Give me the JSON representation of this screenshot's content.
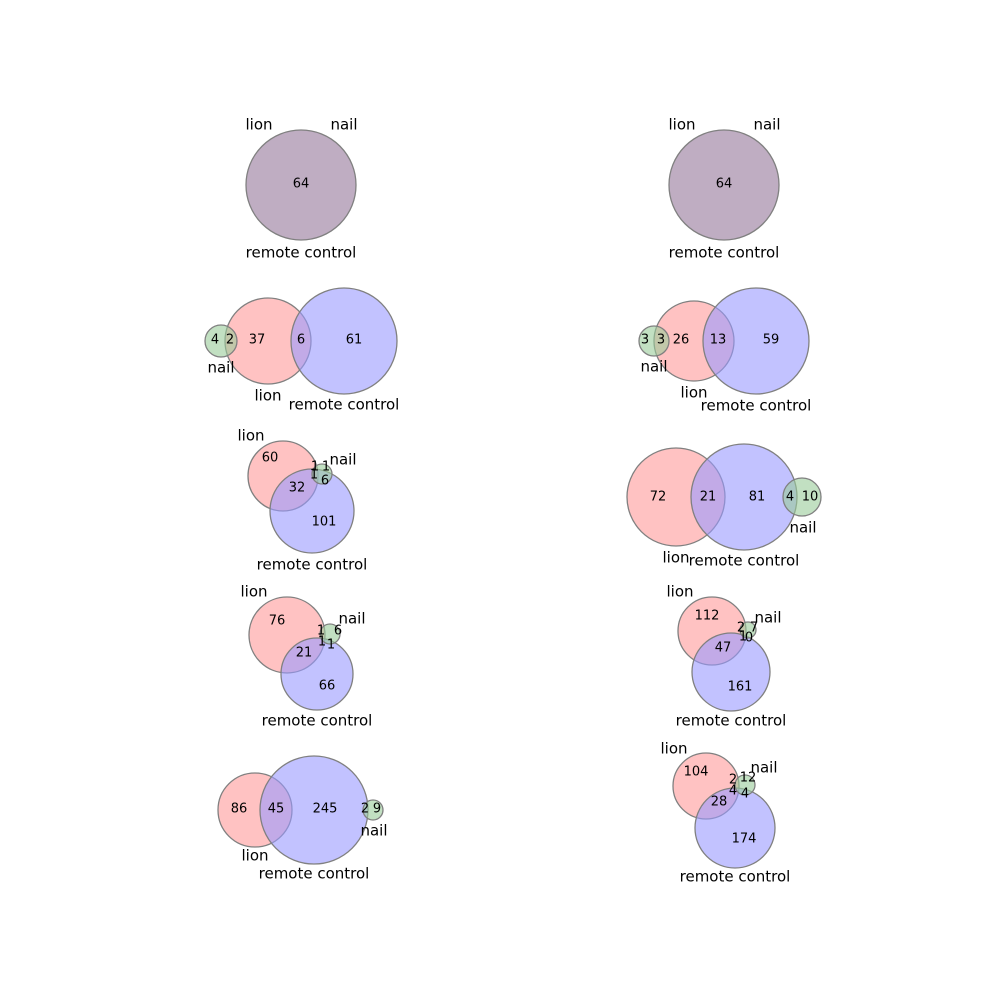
{
  "colors": {
    "lion": "#ff9999",
    "nail": "#99cc99",
    "remote control": "#9999ff",
    "lion+remote control": "#dd99dd",
    "identical sets": "#bfadc2",
    "outline": "#808080"
  },
  "diagrams": [
    {
      "id": "top-left",
      "sets": [
        {
          "name": "lion",
          "label": "lion"
        },
        {
          "name": "nail",
          "label": "nail"
        },
        {
          "name": "remote control",
          "label": "remote control"
        }
      ],
      "regions": [
        {
          "sets": [
            "lion",
            "nail",
            "remote control"
          ],
          "value": "64"
        }
      ]
    },
    {
      "id": "top-right",
      "sets": [
        {
          "name": "lion",
          "label": "lion"
        },
        {
          "name": "nail",
          "label": "nail"
        },
        {
          "name": "remote control",
          "label": "remote control"
        }
      ],
      "regions": [
        {
          "sets": [
            "lion",
            "nail",
            "remote control"
          ],
          "value": "64"
        }
      ]
    },
    {
      "id": "row2-left",
      "sets": [
        {
          "name": "nail",
          "label": "nail"
        },
        {
          "name": "lion",
          "label": "lion"
        },
        {
          "name": "remote control",
          "label": "remote control"
        }
      ],
      "regions": [
        {
          "sets": [
            "nail"
          ],
          "value": "4"
        },
        {
          "sets": [
            "lion",
            "nail"
          ],
          "value": "2"
        },
        {
          "sets": [
            "lion"
          ],
          "value": "37"
        },
        {
          "sets": [
            "lion",
            "remote control"
          ],
          "value": "6"
        },
        {
          "sets": [
            "remote control"
          ],
          "value": "61"
        }
      ]
    },
    {
      "id": "row2-right",
      "sets": [
        {
          "name": "nail",
          "label": "nail"
        },
        {
          "name": "lion",
          "label": "lion"
        },
        {
          "name": "remote control",
          "label": "remote control"
        }
      ],
      "regions": [
        {
          "sets": [
            "nail"
          ],
          "value": "3"
        },
        {
          "sets": [
            "lion",
            "nail"
          ],
          "value": "3"
        },
        {
          "sets": [
            "lion"
          ],
          "value": "26"
        },
        {
          "sets": [
            "lion",
            "remote control"
          ],
          "value": "13"
        },
        {
          "sets": [
            "remote control"
          ],
          "value": "59"
        }
      ]
    },
    {
      "id": "row3-left",
      "sets": [
        {
          "name": "lion",
          "label": "lion"
        },
        {
          "name": "nail",
          "label": "nail"
        },
        {
          "name": "remote control",
          "label": "remote control"
        }
      ],
      "regions": [
        {
          "sets": [
            "lion"
          ],
          "value": "60"
        },
        {
          "sets": [
            "lion",
            "nail"
          ],
          "value": "1"
        },
        {
          "sets": [
            "nail"
          ],
          "value": "1"
        },
        {
          "sets": [
            "lion",
            "nail",
            "remote control"
          ],
          "value": "1"
        },
        {
          "sets": [
            "nail",
            "remote control"
          ],
          "value": "6"
        },
        {
          "sets": [
            "lion",
            "remote control"
          ],
          "value": "32"
        },
        {
          "sets": [
            "remote control"
          ],
          "value": "101"
        }
      ]
    },
    {
      "id": "row3-right",
      "sets": [
        {
          "name": "lion",
          "label": "lion"
        },
        {
          "name": "remote control",
          "label": "remote control"
        },
        {
          "name": "nail",
          "label": "nail"
        }
      ],
      "regions": [
        {
          "sets": [
            "lion"
          ],
          "value": "72"
        },
        {
          "sets": [
            "lion",
            "remote control"
          ],
          "value": "21"
        },
        {
          "sets": [
            "remote control"
          ],
          "value": "81"
        },
        {
          "sets": [
            "nail",
            "remote control"
          ],
          "value": "4"
        },
        {
          "sets": [
            "nail"
          ],
          "value": "10"
        }
      ]
    },
    {
      "id": "row4-left",
      "sets": [
        {
          "name": "lion",
          "label": "lion"
        },
        {
          "name": "nail",
          "label": "nail"
        },
        {
          "name": "remote control",
          "label": "remote control"
        }
      ],
      "regions": [
        {
          "sets": [
            "lion"
          ],
          "value": "76"
        },
        {
          "sets": [
            "lion",
            "nail"
          ],
          "value": "1"
        },
        {
          "sets": [
            "nail"
          ],
          "value": "6"
        },
        {
          "sets": [
            "lion",
            "nail",
            "remote control"
          ],
          "value": "1"
        },
        {
          "sets": [
            "nail",
            "remote control"
          ],
          "value": "1"
        },
        {
          "sets": [
            "lion",
            "remote control"
          ],
          "value": "21"
        },
        {
          "sets": [
            "remote control"
          ],
          "value": "66"
        }
      ]
    },
    {
      "id": "row4-right",
      "sets": [
        {
          "name": "lion",
          "label": "lion"
        },
        {
          "name": "nail",
          "label": "nail"
        },
        {
          "name": "remote control",
          "label": "remote control"
        }
      ],
      "regions": [
        {
          "sets": [
            "lion"
          ],
          "value": "112"
        },
        {
          "sets": [
            "lion",
            "nail"
          ],
          "value": "2"
        },
        {
          "sets": [
            "nail"
          ],
          "value": "7"
        },
        {
          "sets": [
            "lion",
            "nail",
            "remote control"
          ],
          "value": "1"
        },
        {
          "sets": [
            "nail",
            "remote control"
          ],
          "value": "0"
        },
        {
          "sets": [
            "lion",
            "remote control"
          ],
          "value": "47"
        },
        {
          "sets": [
            "remote control"
          ],
          "value": "161"
        }
      ]
    },
    {
      "id": "row5-left",
      "sets": [
        {
          "name": "lion",
          "label": "lion"
        },
        {
          "name": "remote control",
          "label": "remote control"
        },
        {
          "name": "nail",
          "label": "nail"
        }
      ],
      "regions": [
        {
          "sets": [
            "lion"
          ],
          "value": "86"
        },
        {
          "sets": [
            "lion",
            "remote control"
          ],
          "value": "45"
        },
        {
          "sets": [
            "remote control"
          ],
          "value": "245"
        },
        {
          "sets": [
            "nail",
            "remote control"
          ],
          "value": "2"
        },
        {
          "sets": [
            "nail"
          ],
          "value": "9"
        }
      ]
    },
    {
      "id": "row5-right",
      "sets": [
        {
          "name": "lion",
          "label": "lion"
        },
        {
          "name": "nail",
          "label": "nail"
        },
        {
          "name": "remote control",
          "label": "remote control"
        }
      ],
      "regions": [
        {
          "sets": [
            "lion"
          ],
          "value": "104"
        },
        {
          "sets": [
            "lion",
            "nail"
          ],
          "value": "2"
        },
        {
          "sets": [
            "nail"
          ],
          "value": "12"
        },
        {
          "sets": [
            "lion",
            "nail",
            "remote control"
          ],
          "value": "4"
        },
        {
          "sets": [
            "nail",
            "remote control"
          ],
          "value": "4"
        },
        {
          "sets": [
            "lion",
            "remote control"
          ],
          "value": "28"
        },
        {
          "sets": [
            "remote control"
          ],
          "value": "174"
        }
      ]
    }
  ]
}
